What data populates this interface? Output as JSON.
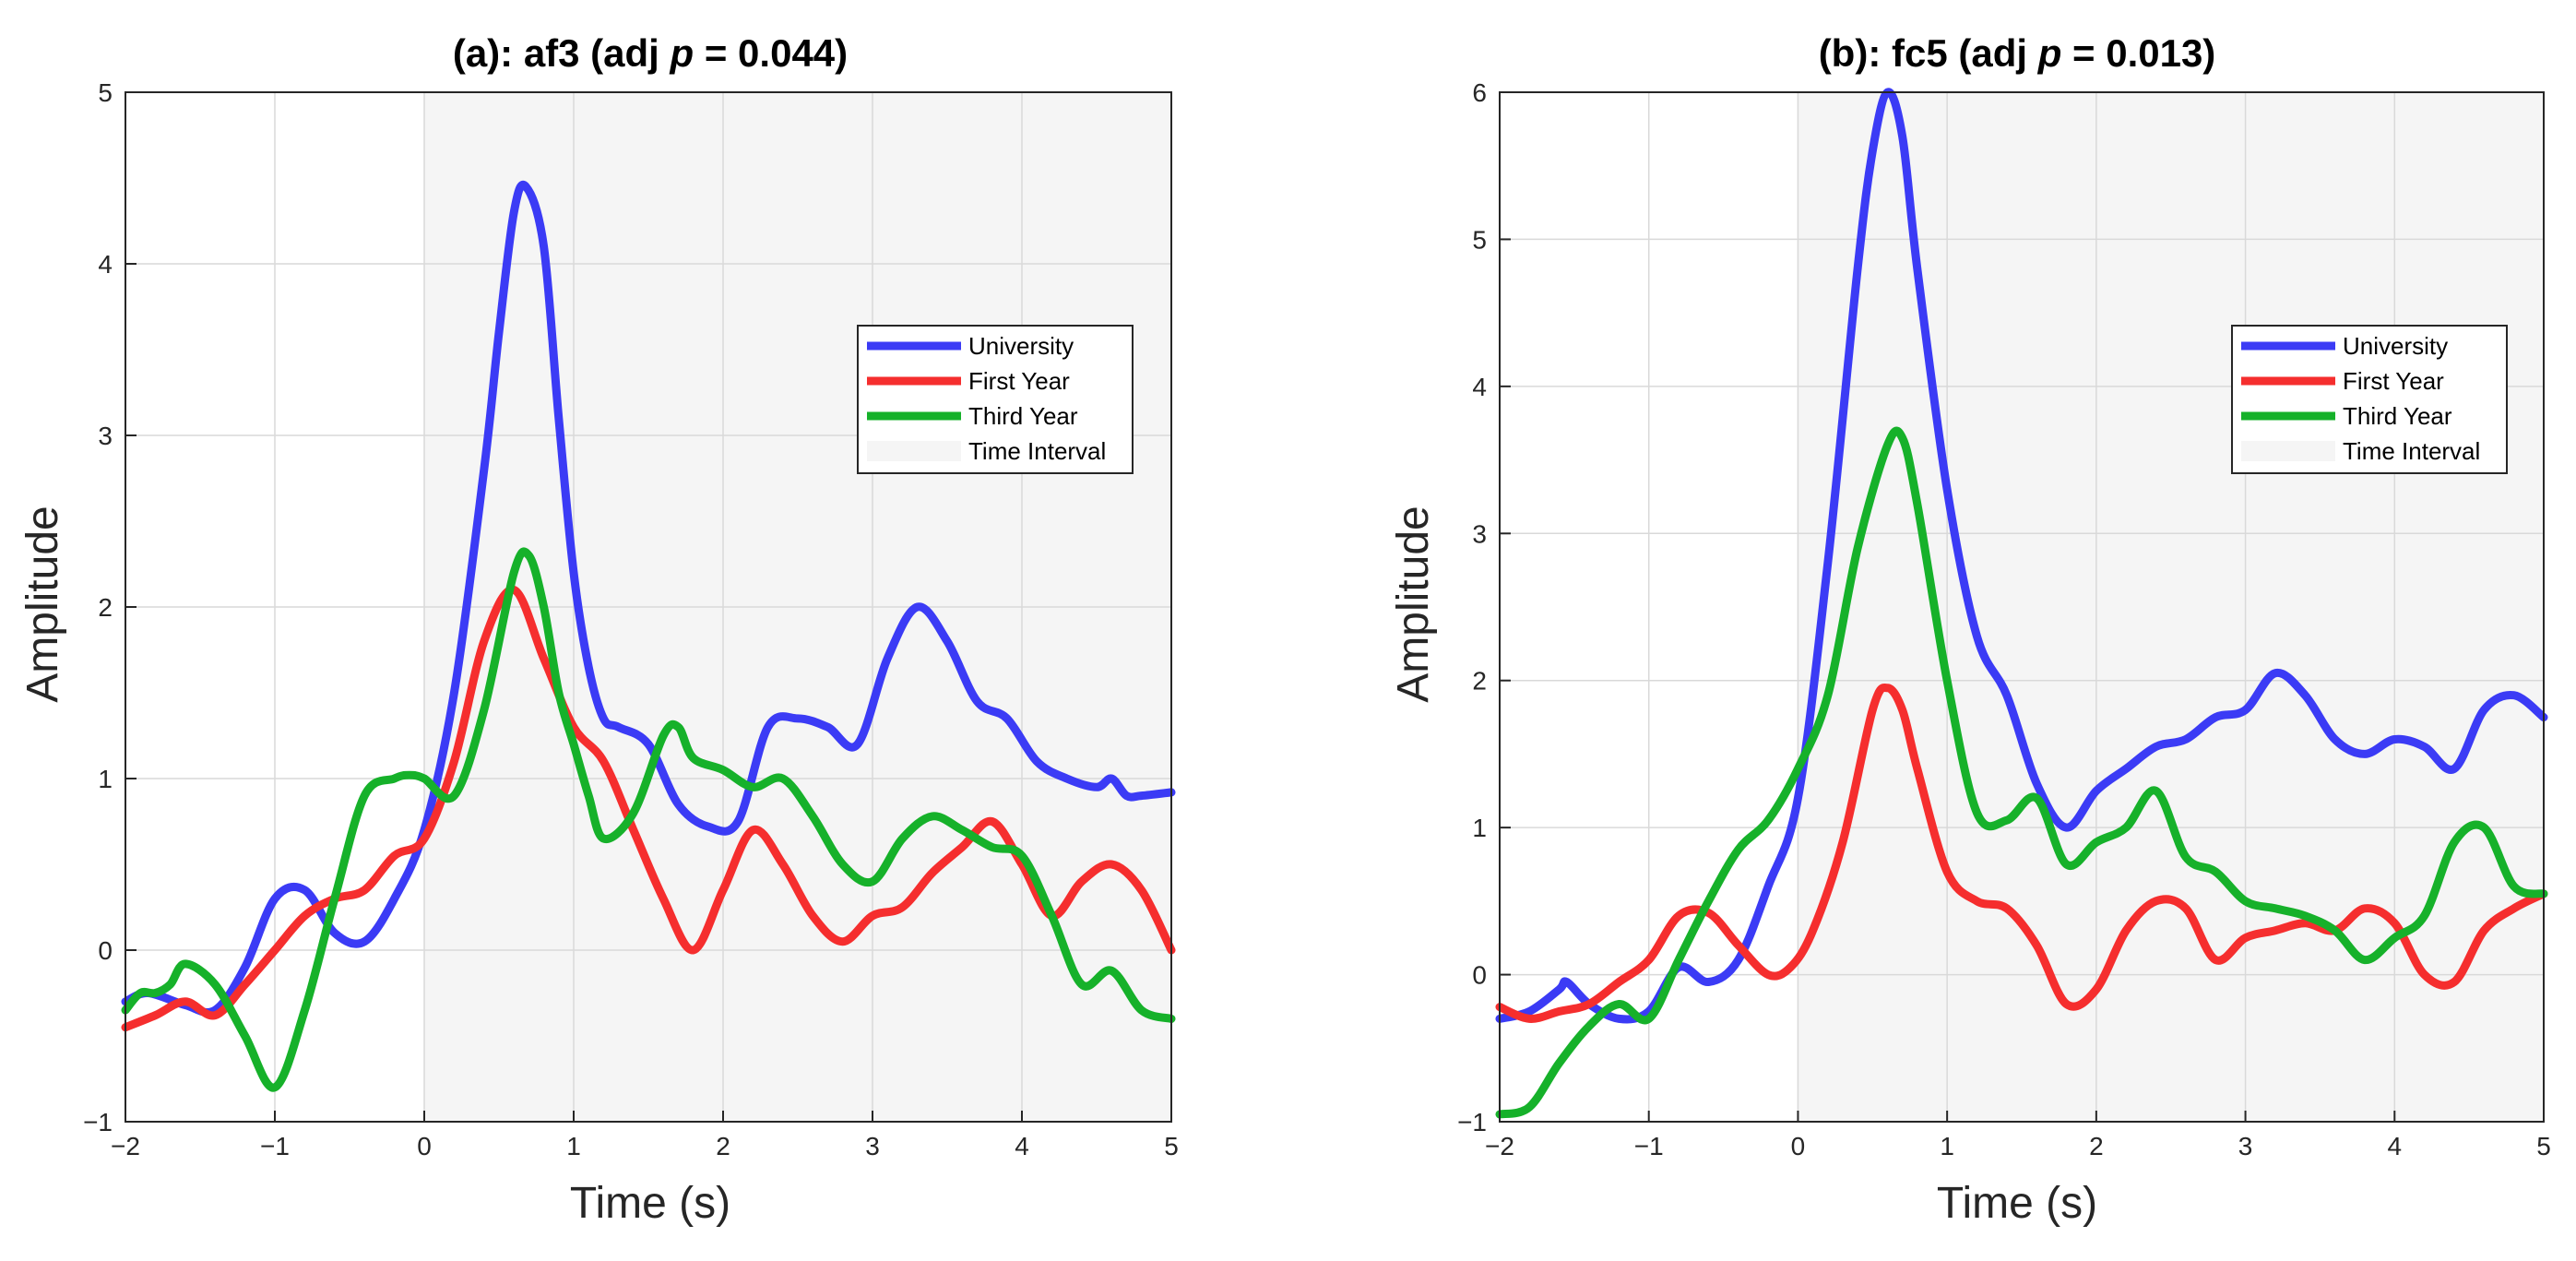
{
  "figure": {
    "background": "#ffffff"
  },
  "colors": {
    "University": "#3b3bf5",
    "First Year": "#f52e2e",
    "Third Year": "#16b12a",
    "Time Interval": "#ececec",
    "axis": "#262626",
    "grid": "#d9d9d9"
  },
  "chart_data": [
    {
      "type": "line",
      "title_prefix": "(a): af3 (adj  ",
      "title_p": "p",
      "title_suffix": " = 0.044)",
      "xlabel": "Time (s)",
      "ylabel": "Amplitude",
      "xlim": [
        -2,
        5
      ],
      "ylim": [
        -1,
        5
      ],
      "xticks": [
        -2,
        -1,
        0,
        1,
        2,
        3,
        4,
        5
      ],
      "xtick_labels": [
        "−2",
        "−1",
        "0",
        "1",
        "2",
        "3",
        "4",
        "5"
      ],
      "yticks": [
        -1,
        0,
        1,
        2,
        3,
        4,
        5
      ],
      "ytick_labels": [
        "−1",
        "0",
        "1",
        "2",
        "3",
        "4",
        "5"
      ],
      "grid": true,
      "legend_position": "top-right",
      "legend": [
        "University",
        "First Year",
        "Third Year",
        "Time Interval"
      ],
      "shaded_interval": [
        0,
        5
      ],
      "series": [
        {
          "name": "University",
          "x": [
            -2,
            -1.85,
            -1.6,
            -1.4,
            -1.2,
            -1.0,
            -0.8,
            -0.6,
            -0.4,
            -0.2,
            0,
            0.2,
            0.4,
            0.5,
            0.6,
            0.68,
            0.8,
            0.9,
            1.0,
            1.1,
            1.2,
            1.3,
            1.5,
            1.7,
            1.9,
            2.1,
            2.3,
            2.5,
            2.7,
            2.9,
            3.1,
            3.3,
            3.5,
            3.7,
            3.9,
            4.1,
            4.3,
            4.5,
            4.6,
            4.7,
            4.8,
            5.0
          ],
          "y": [
            -0.3,
            -0.25,
            -0.32,
            -0.35,
            -0.1,
            0.3,
            0.35,
            0.1,
            0.05,
            0.3,
            0.7,
            1.5,
            2.8,
            3.6,
            4.3,
            4.45,
            4.1,
            3.1,
            2.2,
            1.65,
            1.35,
            1.3,
            1.2,
            0.85,
            0.72,
            0.75,
            1.3,
            1.35,
            1.3,
            1.2,
            1.7,
            2.0,
            1.8,
            1.45,
            1.35,
            1.1,
            1.0,
            0.95,
            1.0,
            0.9,
            0.9,
            0.92
          ]
        },
        {
          "name": "First Year",
          "x": [
            -2,
            -1.8,
            -1.6,
            -1.4,
            -1.2,
            -1.0,
            -0.8,
            -0.6,
            -0.4,
            -0.2,
            0,
            0.2,
            0.4,
            0.6,
            0.8,
            1.0,
            1.2,
            1.4,
            1.6,
            1.8,
            2.0,
            2.2,
            2.4,
            2.6,
            2.8,
            3.0,
            3.2,
            3.4,
            3.6,
            3.8,
            4.0,
            4.2,
            4.4,
            4.6,
            4.8,
            5.0
          ],
          "y": [
            -0.45,
            -0.38,
            -0.3,
            -0.38,
            -0.2,
            0.0,
            0.2,
            0.3,
            0.35,
            0.55,
            0.65,
            1.1,
            1.8,
            2.1,
            1.7,
            1.3,
            1.1,
            0.7,
            0.3,
            0.0,
            0.35,
            0.7,
            0.5,
            0.2,
            0.05,
            0.2,
            0.25,
            0.45,
            0.6,
            0.75,
            0.5,
            0.2,
            0.4,
            0.5,
            0.35,
            0.0
          ]
        },
        {
          "name": "Third Year",
          "x": [
            -2,
            -1.9,
            -1.8,
            -1.7,
            -1.6,
            -1.4,
            -1.2,
            -1.0,
            -0.8,
            -0.6,
            -0.4,
            -0.2,
            -0.1,
            0,
            0.2,
            0.4,
            0.6,
            0.7,
            0.8,
            0.9,
            1.0,
            1.1,
            1.2,
            1.4,
            1.6,
            1.7,
            1.8,
            2.0,
            2.2,
            2.4,
            2.6,
            2.8,
            3.0,
            3.2,
            3.4,
            3.6,
            3.8,
            4.0,
            4.2,
            4.4,
            4.6,
            4.8,
            5.0
          ],
          "y": [
            -0.35,
            -0.25,
            -0.25,
            -0.2,
            -0.08,
            -0.2,
            -0.5,
            -0.8,
            -0.35,
            0.3,
            0.9,
            1.0,
            1.02,
            1.0,
            0.9,
            1.4,
            2.2,
            2.3,
            2.0,
            1.5,
            1.2,
            0.9,
            0.65,
            0.8,
            1.25,
            1.3,
            1.12,
            1.05,
            0.95,
            1.0,
            0.78,
            0.5,
            0.4,
            0.65,
            0.78,
            0.7,
            0.6,
            0.55,
            0.2,
            -0.2,
            -0.12,
            -0.35,
            -0.4
          ]
        }
      ]
    },
    {
      "type": "line",
      "title_prefix": "(b): fc5 (adj  ",
      "title_p": "p",
      "title_suffix": " = 0.013)",
      "xlabel": "Time (s)",
      "ylabel": "Amplitude",
      "xlim": [
        -2,
        5
      ],
      "ylim": [
        -1,
        6
      ],
      "xticks": [
        -2,
        -1,
        0,
        1,
        2,
        3,
        4,
        5
      ],
      "xtick_labels": [
        "−2",
        "−1",
        "0",
        "1",
        "2",
        "3",
        "4",
        "5"
      ],
      "yticks": [
        -1,
        0,
        1,
        2,
        3,
        4,
        5,
        6
      ],
      "ytick_labels": [
        "−1",
        "0",
        "1",
        "2",
        "3",
        "4",
        "5",
        "6"
      ],
      "grid": true,
      "legend_position": "top-right",
      "legend": [
        "University",
        "First Year",
        "Third Year",
        "Time Interval"
      ],
      "shaded_interval": [
        0,
        5
      ],
      "series": [
        {
          "name": "University",
          "x": [
            -2,
            -1.8,
            -1.6,
            -1.55,
            -1.4,
            -1.2,
            -1.0,
            -0.8,
            -0.6,
            -0.4,
            -0.2,
            0,
            0.2,
            0.4,
            0.5,
            0.6,
            0.7,
            0.8,
            1.0,
            1.2,
            1.4,
            1.6,
            1.8,
            2.0,
            2.2,
            2.4,
            2.6,
            2.8,
            3.0,
            3.2,
            3.4,
            3.6,
            3.8,
            4.0,
            4.2,
            4.4,
            4.6,
            4.8,
            5.0
          ],
          "y": [
            -0.3,
            -0.25,
            -0.1,
            -0.05,
            -0.2,
            -0.3,
            -0.25,
            0.05,
            -0.05,
            0.1,
            0.6,
            1.2,
            2.8,
            4.8,
            5.6,
            6.0,
            5.7,
            4.8,
            3.3,
            2.3,
            1.9,
            1.3,
            1.0,
            1.25,
            1.4,
            1.55,
            1.6,
            1.75,
            1.8,
            2.05,
            1.9,
            1.6,
            1.5,
            1.6,
            1.55,
            1.4,
            1.8,
            1.9,
            1.75
          ]
        },
        {
          "name": "First Year",
          "x": [
            -2,
            -1.8,
            -1.6,
            -1.4,
            -1.2,
            -1.0,
            -0.8,
            -0.6,
            -0.4,
            -0.2,
            -0.05,
            0.1,
            0.3,
            0.5,
            0.6,
            0.7,
            0.8,
            1.0,
            1.2,
            1.4,
            1.6,
            1.8,
            2.0,
            2.2,
            2.4,
            2.6,
            2.8,
            3.0,
            3.2,
            3.4,
            3.6,
            3.8,
            4.0,
            4.2,
            4.4,
            4.6,
            4.8,
            5.0
          ],
          "y": [
            -0.22,
            -0.3,
            -0.25,
            -0.2,
            -0.05,
            0.1,
            0.4,
            0.42,
            0.2,
            0.0,
            0.05,
            0.3,
            0.9,
            1.8,
            1.95,
            1.8,
            1.4,
            0.7,
            0.5,
            0.45,
            0.2,
            -0.2,
            -0.1,
            0.3,
            0.5,
            0.45,
            0.1,
            0.25,
            0.3,
            0.35,
            0.3,
            0.45,
            0.35,
            0.0,
            -0.05,
            0.3,
            0.45,
            0.55
          ]
        },
        {
          "name": "Third Year",
          "x": [
            -2,
            -1.8,
            -1.6,
            -1.4,
            -1.2,
            -1.0,
            -0.8,
            -0.6,
            -0.4,
            -0.2,
            0,
            0.2,
            0.4,
            0.6,
            0.7,
            0.8,
            1.0,
            1.2,
            1.4,
            1.6,
            1.8,
            2.0,
            2.2,
            2.4,
            2.6,
            2.8,
            3.0,
            3.2,
            3.4,
            3.6,
            3.8,
            4.0,
            4.2,
            4.4,
            4.6,
            4.8,
            5.0
          ],
          "y": [
            -0.95,
            -0.9,
            -0.6,
            -0.35,
            -0.2,
            -0.3,
            0.1,
            0.5,
            0.85,
            1.05,
            1.4,
            1.9,
            2.9,
            3.6,
            3.65,
            3.2,
            2.0,
            1.1,
            1.05,
            1.2,
            0.75,
            0.9,
            1.0,
            1.25,
            0.8,
            0.7,
            0.5,
            0.45,
            0.4,
            0.3,
            0.1,
            0.25,
            0.4,
            0.9,
            1.0,
            0.6,
            0.55
          ]
        }
      ]
    }
  ]
}
